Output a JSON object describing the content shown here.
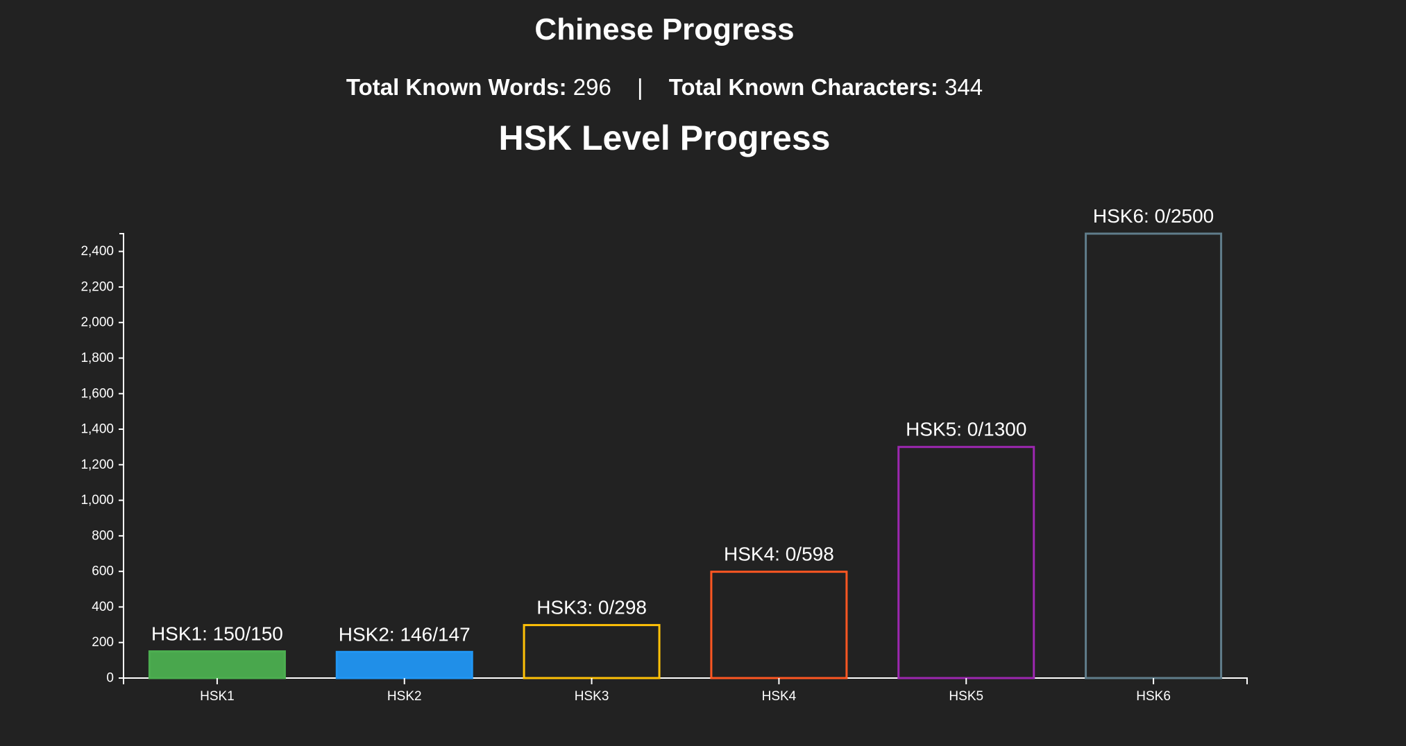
{
  "page": {
    "title": "Chinese Progress",
    "stats": {
      "words_label": "Total Known Words:",
      "words_value": "296",
      "separator": "|",
      "chars_label": "Total Known Characters:",
      "chars_value": "344"
    }
  },
  "chart_data": {
    "type": "bar",
    "title": "HSK Level Progress",
    "xlabel": "",
    "ylabel": "",
    "ylim": [
      0,
      2500
    ],
    "yticks": [
      0,
      200,
      400,
      600,
      800,
      1000,
      1200,
      1400,
      1600,
      1800,
      2000,
      2200,
      2400
    ],
    "grid": false,
    "categories": [
      "HSK1",
      "HSK2",
      "HSK3",
      "HSK4",
      "HSK5",
      "HSK6"
    ],
    "bars": [
      {
        "category": "HSK1",
        "known": 150,
        "total": 150,
        "label": "HSK1: 150/150",
        "color": "#4caf50"
      },
      {
        "category": "HSK2",
        "known": 146,
        "total": 147,
        "label": "HSK2: 146/147",
        "color": "#2196f3"
      },
      {
        "category": "HSK3",
        "known": 0,
        "total": 298,
        "label": "HSK3: 0/298",
        "color": "#ffc107"
      },
      {
        "category": "HSK4",
        "known": 0,
        "total": 598,
        "label": "HSK4: 0/598",
        "color": "#ff5722"
      },
      {
        "category": "HSK5",
        "known": 0,
        "total": 1300,
        "label": "HSK5: 0/1300",
        "color": "#9c27b0"
      },
      {
        "category": "HSK6",
        "known": 0,
        "total": 2500,
        "label": "HSK6: 0/2500",
        "color": "#607d8b"
      }
    ]
  }
}
